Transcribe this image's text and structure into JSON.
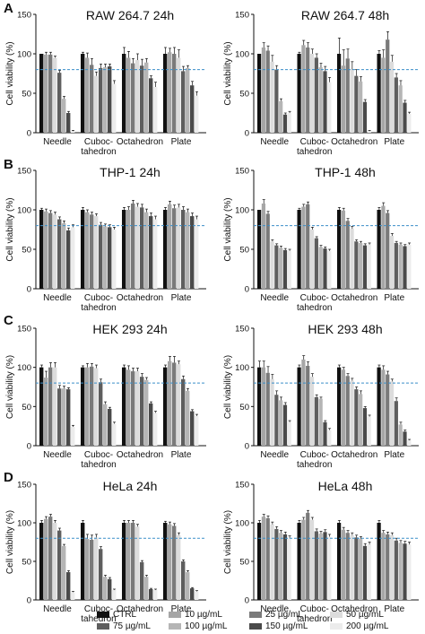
{
  "panel_letters": [
    "A",
    "B",
    "C",
    "D"
  ],
  "colors": {
    "CTRL": "#111111",
    "10 µg/mL": "#a6a6a6",
    "25 µg/mL": "#7a7a7a",
    "50 µg/mL": "#dcdcdc",
    "75 µg/mL": "#5e5e5e",
    "100 µg/mL": "#b5b5b5",
    "150 µg/mL": "#4a4a4a",
    "200 µg/mL": "#ececec",
    "reference_line": "#3b8fc9"
  },
  "legend": {
    "row1": [
      "CTRL",
      "10 µg/mL",
      "25 µg/mL",
      "50 µg/mL"
    ],
    "row2": [
      "75 µg/mL",
      "100 µg/mL",
      "150 µg/mL",
      "200 µg/mL"
    ]
  },
  "chart_data": [
    {
      "type": "bar",
      "panel": "A",
      "title": "RAW 264.7 24h",
      "ylabel": "Cell viability (%)",
      "ylim": [
        0,
        150
      ],
      "yticks": [
        0,
        50,
        100,
        150
      ],
      "categories": [
        "Needle",
        "Cuboc-\ntahedron",
        "Octahedron",
        "Plate"
      ],
      "reference_line": 80,
      "series": [
        {
          "name": "CTRL",
          "values": [
            100,
            100,
            100,
            100
          ],
          "errors": [
            0,
            2,
            8,
            8
          ]
        },
        {
          "name": "10 µg/mL",
          "values": [
            99,
            95,
            95,
            102
          ],
          "errors": [
            3,
            6,
            8,
            5
          ]
        },
        {
          "name": "25 µg/mL",
          "values": [
            99,
            86,
            88,
            100
          ],
          "errors": [
            3,
            8,
            6,
            8
          ]
        },
        {
          "name": "50 µg/mL",
          "values": [
            95,
            72,
            92,
            95
          ],
          "errors": [
            2,
            5,
            8,
            10
          ]
        },
        {
          "name": "75 µg/mL",
          "values": [
            76,
            82,
            85,
            78
          ],
          "errors": [
            3,
            5,
            8,
            6
          ]
        },
        {
          "name": "100 µg/mL",
          "values": [
            43,
            83,
            89,
            82
          ],
          "errors": [
            3,
            4,
            5,
            3
          ]
        },
        {
          "name": "150 µg/mL",
          "values": [
            25,
            84,
            69,
            60
          ],
          "errors": [
            2,
            3,
            3,
            5
          ]
        },
        {
          "name": "200 µg/mL",
          "values": [
            2,
            62,
            58,
            47
          ],
          "errors": [
            1,
            4,
            6,
            5
          ]
        }
      ]
    },
    {
      "type": "bar",
      "panel": "A",
      "title": "RAW 264.7 48h",
      "ylabel": "Cell viability (%)",
      "ylim": [
        0,
        150
      ],
      "yticks": [
        0,
        50,
        100,
        150
      ],
      "categories": [
        "Needle",
        "Cuboc-\ntahedron",
        "Octahedron",
        "Plate"
      ],
      "reference_line": 80,
      "series": [
        {
          "name": "CTRL",
          "values": [
            100,
            100,
            100,
            100
          ],
          "errors": [
            0,
            2,
            20,
            4
          ]
        },
        {
          "name": "10 µg/mL",
          "values": [
            108,
            111,
            85,
            95
          ],
          "errors": [
            6,
            6,
            20,
            10
          ]
        },
        {
          "name": "25 µg/mL",
          "values": [
            104,
            108,
            94,
            118
          ],
          "errors": [
            6,
            6,
            12,
            10
          ]
        },
        {
          "name": "50 µg/mL",
          "values": [
            90,
            100,
            80,
            90
          ],
          "errors": [
            8,
            6,
            10,
            8
          ]
        },
        {
          "name": "75 µg/mL",
          "values": [
            80,
            95,
            72,
            70
          ],
          "errors": [
            5,
            5,
            8,
            5
          ]
        },
        {
          "name": "100 µg/mL",
          "values": [
            40,
            83,
            65,
            60
          ],
          "errors": [
            3,
            5,
            6,
            6
          ]
        },
        {
          "name": "150 µg/mL",
          "values": [
            23,
            78,
            39,
            38
          ],
          "errors": [
            2,
            6,
            3,
            3
          ]
        },
        {
          "name": "200 µg/mL",
          "values": [
            25,
            64,
            2,
            24
          ],
          "errors": [
            2,
            6,
            1,
            2
          ]
        }
      ]
    },
    {
      "type": "bar",
      "panel": "B",
      "title": "THP-1 24h",
      "ylabel": "Cell viability (%)",
      "ylim": [
        0,
        150
      ],
      "yticks": [
        0,
        50,
        100,
        150
      ],
      "categories": [
        "Needle",
        "Cuboc-\ntahedron",
        "Octahedron",
        "Plate"
      ],
      "reference_line": 80,
      "series": [
        {
          "name": "CTRL",
          "values": [
            100,
            100,
            100,
            100
          ],
          "errors": [
            2,
            3,
            3,
            3
          ]
        },
        {
          "name": "10 µg/mL",
          "values": [
            98,
            97,
            100,
            107
          ],
          "errors": [
            3,
            3,
            4,
            4
          ]
        },
        {
          "name": "25 µg/mL",
          "values": [
            96,
            94,
            108,
            102
          ],
          "errors": [
            3,
            3,
            4,
            4
          ]
        },
        {
          "name": "50 µg/mL",
          "values": [
            94,
            92,
            104,
            103
          ],
          "errors": [
            3,
            3,
            4,
            4
          ]
        },
        {
          "name": "75 µg/mL",
          "values": [
            88,
            81,
            103,
            100
          ],
          "errors": [
            3,
            3,
            4,
            4
          ]
        },
        {
          "name": "100 µg/mL",
          "values": [
            83,
            79,
            97,
            97
          ],
          "errors": [
            3,
            3,
            4,
            4
          ]
        },
        {
          "name": "150 µg/mL",
          "values": [
            74,
            78,
            92,
            92
          ],
          "errors": [
            3,
            3,
            4,
            4
          ]
        },
        {
          "name": "200 µg/mL",
          "values": [
            78,
            75,
            88,
            88
          ],
          "errors": [
            3,
            3,
            4,
            4
          ]
        }
      ]
    },
    {
      "type": "bar",
      "panel": "B",
      "title": "THP-1 48h",
      "ylabel": "Cell viability (%)",
      "ylim": [
        0,
        150
      ],
      "yticks": [
        0,
        50,
        100,
        150
      ],
      "categories": [
        "Needle",
        "Cuboc-\ntahedron",
        "Octahedron",
        "Plate"
      ],
      "reference_line": 80,
      "series": [
        {
          "name": "CTRL",
          "values": [
            100,
            100,
            100,
            100
          ],
          "errors": [
            0,
            2,
            3,
            3
          ]
        },
        {
          "name": "10 µg/mL",
          "values": [
            108,
            104,
            99,
            105
          ],
          "errors": [
            5,
            3,
            3,
            4
          ]
        },
        {
          "name": "25 µg/mL",
          "values": [
            95,
            107,
            86,
            96
          ],
          "errors": [
            3,
            3,
            3,
            3
          ]
        },
        {
          "name": "50 µg/mL",
          "values": [
            60,
            75,
            76,
            67
          ],
          "errors": [
            2,
            3,
            3,
            3
          ]
        },
        {
          "name": "75 µg/mL",
          "values": [
            55,
            64,
            60,
            58
          ],
          "errors": [
            2,
            2,
            2,
            2
          ]
        },
        {
          "name": "100 µg/mL",
          "values": [
            52,
            53,
            58,
            56
          ],
          "errors": [
            2,
            2,
            2,
            2
          ]
        },
        {
          "name": "150 µg/mL",
          "values": [
            49,
            51,
            55,
            54
          ],
          "errors": [
            2,
            2,
            2,
            2
          ]
        },
        {
          "name": "200 µg/mL",
          "values": [
            48,
            48,
            56,
            56
          ],
          "errors": [
            2,
            2,
            2,
            2
          ]
        }
      ]
    },
    {
      "type": "bar",
      "panel": "C",
      "title": "HEK 293 24h",
      "ylabel": "Cell viability (%)",
      "ylim": [
        0,
        150
      ],
      "yticks": [
        0,
        50,
        100,
        150
      ],
      "categories": [
        "Needle",
        "Cuboc-\ntahedron",
        "Octahedron",
        "Plate"
      ],
      "reference_line": 80,
      "series": [
        {
          "name": "CTRL",
          "values": [
            100,
            100,
            100,
            100
          ],
          "errors": [
            3,
            2,
            3,
            3
          ]
        },
        {
          "name": "10 µg/mL",
          "values": [
            87,
            100,
            97,
            108
          ],
          "errors": [
            8,
            5,
            5,
            6
          ]
        },
        {
          "name": "25 µg/mL",
          "values": [
            100,
            101,
            95,
            106
          ],
          "errors": [
            6,
            4,
            4,
            8
          ]
        },
        {
          "name": "50 µg/mL",
          "values": [
            100,
            99,
            95,
            104
          ],
          "errors": [
            6,
            4,
            4,
            4
          ]
        },
        {
          "name": "75 µg/mL",
          "values": [
            73,
            81,
            88,
            85
          ],
          "errors": [
            4,
            4,
            4,
            4
          ]
        },
        {
          "name": "100 µg/mL",
          "values": [
            73,
            53,
            84,
            70
          ],
          "errors": [
            3,
            3,
            3,
            3
          ]
        },
        {
          "name": "150 µg/mL",
          "values": [
            72,
            47,
            54,
            44
          ],
          "errors": [
            2,
            2,
            2,
            2
          ]
        },
        {
          "name": "200 µg/mL",
          "values": [
            24,
            28,
            42,
            38
          ],
          "errors": [
            2,
            2,
            2,
            2
          ]
        }
      ]
    },
    {
      "type": "bar",
      "panel": "C",
      "title": "HEK 293 48h",
      "ylabel": "Cell viability (%)",
      "ylim": [
        0,
        150
      ],
      "yticks": [
        0,
        50,
        100,
        150
      ],
      "categories": [
        "Needle",
        "Cuboc-\ntahedron",
        "Octahedron",
        "Plate"
      ],
      "reference_line": 80,
      "series": [
        {
          "name": "CTRL",
          "values": [
            100,
            100,
            100,
            100
          ],
          "errors": [
            8,
            3,
            3,
            3
          ]
        },
        {
          "name": "10 µg/mL",
          "values": [
            100,
            110,
            97,
            97
          ],
          "errors": [
            8,
            5,
            3,
            5
          ]
        },
        {
          "name": "25 µg/mL",
          "values": [
            93,
            102,
            89,
            91
          ],
          "errors": [
            8,
            5,
            3,
            4
          ]
        },
        {
          "name": "50 µg/mL",
          "values": [
            85,
            88,
            83,
            82
          ],
          "errors": [
            6,
            4,
            3,
            3
          ]
        },
        {
          "name": "75 µg/mL",
          "values": [
            65,
            62,
            72,
            57
          ],
          "errors": [
            5,
            3,
            3,
            4
          ]
        },
        {
          "name": "100 µg/mL",
          "values": [
            58,
            60,
            66,
            27
          ],
          "errors": [
            4,
            2,
            4,
            3
          ]
        },
        {
          "name": "150 µg/mL",
          "values": [
            52,
            30,
            48,
            18
          ],
          "errors": [
            3,
            2,
            2,
            2
          ]
        },
        {
          "name": "200 µg/mL",
          "values": [
            30,
            20,
            37,
            7
          ],
          "errors": [
            2,
            2,
            2,
            1
          ]
        }
      ]
    },
    {
      "type": "bar",
      "panel": "D",
      "title": "HeLa 24h",
      "ylabel": "Cell viability (%)",
      "ylim": [
        0,
        150
      ],
      "yticks": [
        0,
        50,
        100,
        150
      ],
      "categories": [
        "Needle",
        "Cuboc-\ntahedron",
        "Octahedron",
        "Plate"
      ],
      "reference_line": 80,
      "series": [
        {
          "name": "CTRL",
          "values": [
            100,
            100,
            100,
            100
          ],
          "errors": [
            3,
            3,
            3,
            2
          ]
        },
        {
          "name": "10 µg/mL",
          "values": [
            105,
            79,
            100,
            98
          ],
          "errors": [
            3,
            6,
            3,
            3
          ]
        },
        {
          "name": "25 µg/mL",
          "values": [
            108,
            78,
            100,
            96
          ],
          "errors": [
            3,
            6,
            3,
            3
          ]
        },
        {
          "name": "50 µg/mL",
          "values": [
            100,
            81,
            95,
            84
          ],
          "errors": [
            3,
            4,
            3,
            3
          ]
        },
        {
          "name": "75 µg/mL",
          "values": [
            90,
            66,
            49,
            50
          ],
          "errors": [
            3,
            3,
            2,
            2
          ]
        },
        {
          "name": "100 µg/mL",
          "values": [
            70,
            30,
            30,
            36
          ],
          "errors": [
            2,
            2,
            2,
            2
          ]
        },
        {
          "name": "150 µg/mL",
          "values": [
            36,
            27,
            14,
            15
          ],
          "errors": [
            2,
            2,
            1,
            1
          ]
        },
        {
          "name": "200 µg/mL",
          "values": [
            10,
            13,
            13,
            11
          ],
          "errors": [
            1,
            1,
            1,
            1
          ]
        }
      ]
    },
    {
      "type": "bar",
      "panel": "D",
      "title": "HeLa 48h",
      "ylabel": "Cell viability (%)",
      "ylim": [
        0,
        150
      ],
      "yticks": [
        0,
        50,
        100,
        150
      ],
      "categories": [
        "Needle",
        "Cuboc-\ntahedron",
        "Octahedron",
        "Plate"
      ],
      "reference_line": 80,
      "series": [
        {
          "name": "CTRL",
          "values": [
            100,
            100,
            100,
            100
          ],
          "errors": [
            3,
            3,
            3,
            3
          ]
        },
        {
          "name": "10 µg/mL",
          "values": [
            108,
            104,
            91,
            87
          ],
          "errors": [
            3,
            3,
            3,
            3
          ]
        },
        {
          "name": "25 µg/mL",
          "values": [
            106,
            113,
            87,
            85
          ],
          "errors": [
            3,
            3,
            3,
            3
          ]
        },
        {
          "name": "50 µg/mL",
          "values": [
            98,
            104,
            84,
            84
          ],
          "errors": [
            3,
            3,
            3,
            3
          ]
        },
        {
          "name": "75 µg/mL",
          "values": [
            92,
            89,
            81,
            77
          ],
          "errors": [
            3,
            3,
            3,
            3
          ]
        },
        {
          "name": "100 µg/mL",
          "values": [
            87,
            86,
            79,
            74
          ],
          "errors": [
            3,
            3,
            3,
            3
          ]
        },
        {
          "name": "150 µg/mL",
          "values": [
            85,
            88,
            70,
            73
          ],
          "errors": [
            3,
            3,
            3,
            3
          ]
        },
        {
          "name": "200 µg/mL",
          "values": [
            80,
            82,
            72,
            72
          ],
          "errors": [
            3,
            3,
            3,
            3
          ]
        }
      ]
    }
  ]
}
